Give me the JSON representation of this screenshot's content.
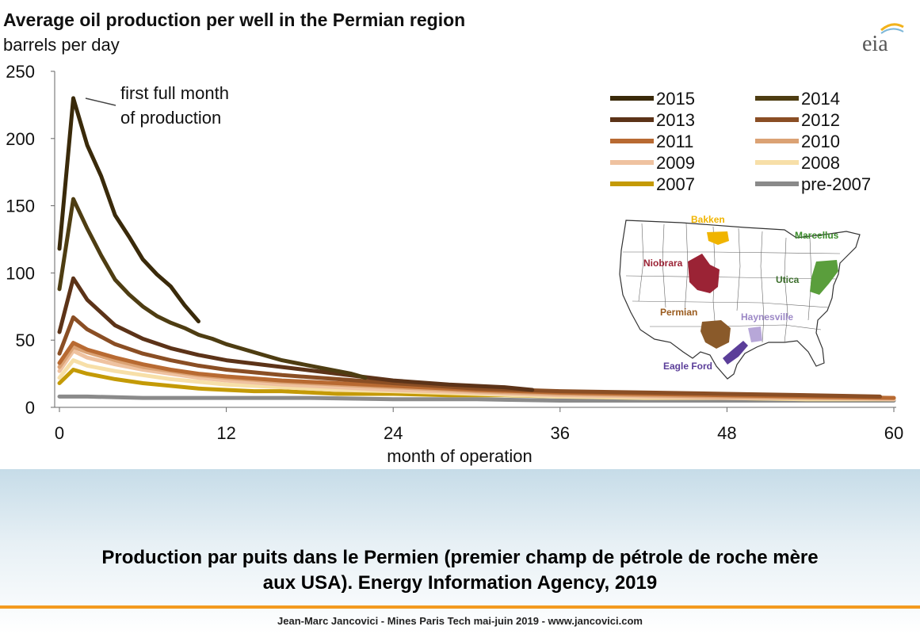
{
  "slide": {
    "caption_line1": "Production par puits dans le Permien (premier champ de pétrole de roche mère",
    "caption_line2": "aux USA). Energy Information Agency, 2019",
    "footer": "Jean-Marc Jancovici - Mines Paris Tech mai-juin 2019 - www.jancovici.com",
    "accent_color": "#f39a1e"
  },
  "chart_data": {
    "type": "line",
    "title": "Average oil production per well in the Permian region",
    "subtitle": "barrels per day",
    "logo": "eia",
    "xlabel": "month of operation",
    "ylabel": "",
    "xlim": [
      0,
      60
    ],
    "ylim": [
      0,
      250
    ],
    "xticks": [
      0,
      12,
      24,
      36,
      48,
      60
    ],
    "yticks": [
      0,
      50,
      100,
      150,
      200,
      250
    ],
    "grid": false,
    "legend_position": "top-right",
    "annotation": {
      "text_line1": "first full month",
      "text_line2": "of production",
      "x": 1,
      "y": 230
    },
    "series": [
      {
        "name": "2015",
        "color": "#3a2a0a",
        "x": [
          0,
          1,
          2,
          3,
          4,
          5,
          6,
          7,
          8,
          9,
          10
        ],
        "y": [
          118,
          230,
          195,
          172,
          143,
          127,
          110,
          99,
          90,
          76,
          64
        ]
      },
      {
        "name": "2014",
        "color": "#4e3d12",
        "x": [
          0,
          1,
          2,
          3,
          4,
          5,
          6,
          7,
          8,
          9,
          10,
          11,
          12,
          13,
          14,
          15,
          16,
          17,
          18,
          19,
          20,
          21,
          22
        ],
        "y": [
          88,
          155,
          133,
          113,
          95,
          84,
          75,
          68,
          63,
          59,
          54,
          51,
          47,
          44,
          41,
          38,
          35,
          33,
          31,
          29,
          27,
          25,
          22
        ]
      },
      {
        "name": "2013",
        "color": "#5c3318",
        "x": [
          0,
          1,
          2,
          4,
          6,
          8,
          10,
          12,
          16,
          20,
          24,
          28,
          32,
          34
        ],
        "y": [
          56,
          96,
          80,
          61,
          51,
          44,
          39,
          35,
          30,
          25,
          20,
          17,
          15,
          13
        ]
      },
      {
        "name": "2012",
        "color": "#8a4e24",
        "x": [
          0,
          1,
          2,
          4,
          6,
          8,
          10,
          12,
          16,
          20,
          24,
          30,
          36,
          42,
          48,
          54,
          59
        ],
        "y": [
          40,
          67,
          58,
          47,
          40,
          35,
          31,
          28,
          24,
          21,
          18,
          14,
          12,
          11,
          10,
          9,
          8
        ]
      },
      {
        "name": "2011",
        "color": "#b86a32",
        "x": [
          0,
          1,
          2,
          4,
          6,
          8,
          10,
          12,
          16,
          20,
          24,
          30,
          36,
          42,
          48,
          54,
          60
        ],
        "y": [
          33,
          48,
          43,
          37,
          32,
          28,
          25,
          23,
          20,
          18,
          16,
          13,
          11,
          10,
          9,
          8,
          7
        ]
      },
      {
        "name": "2010",
        "color": "#dba274",
        "x": [
          0,
          1,
          2,
          4,
          6,
          8,
          10,
          12,
          16,
          20,
          24,
          30,
          36,
          42,
          48,
          54,
          60
        ],
        "y": [
          30,
          45,
          41,
          35,
          30,
          27,
          24,
          22,
          19,
          17,
          15,
          12,
          10,
          9,
          8,
          7,
          7
        ]
      },
      {
        "name": "2009",
        "color": "#efc2a0",
        "x": [
          0,
          1,
          2,
          4,
          6,
          8,
          10,
          12,
          16,
          20,
          24,
          30,
          36,
          42,
          48,
          54,
          60
        ],
        "y": [
          27,
          42,
          37,
          32,
          28,
          25,
          22,
          20,
          17,
          15,
          13,
          11,
          9,
          8,
          7,
          7,
          6
        ]
      },
      {
        "name": "2008",
        "color": "#f7dfa8",
        "x": [
          0,
          1,
          2,
          4,
          6,
          8,
          10,
          12,
          16,
          20,
          24,
          30,
          36,
          42,
          48,
          54,
          60
        ],
        "y": [
          22,
          35,
          31,
          27,
          24,
          21,
          19,
          17,
          15,
          13,
          12,
          10,
          8,
          7,
          7,
          6,
          6
        ]
      },
      {
        "name": "2007",
        "color": "#c49a06",
        "x": [
          0,
          1,
          2,
          4,
          6,
          8,
          10,
          12,
          14,
          16,
          18,
          20,
          24,
          28,
          32,
          36,
          42,
          48,
          54,
          60
        ],
        "y": [
          18,
          28,
          25,
          21,
          18,
          16,
          14,
          13,
          12,
          12,
          11,
          10,
          10,
          9,
          9,
          8,
          7,
          7,
          6,
          6
        ]
      },
      {
        "name": "pre-2007",
        "color": "#8a8a8a",
        "x": [
          0,
          2,
          6,
          12,
          18,
          24,
          30,
          36,
          42,
          48,
          54,
          60
        ],
        "y": [
          8,
          8,
          7,
          7,
          7,
          6,
          6,
          5,
          5,
          5,
          5,
          5
        ]
      }
    ],
    "map_inset": {
      "labels": [
        {
          "text": "Bakken",
          "color": "#f0b400"
        },
        {
          "text": "Marcellus",
          "color": "#3c8c2c"
        },
        {
          "text": "Niobrara",
          "color": "#9b2335"
        },
        {
          "text": "Utica",
          "color": "#3c6e2c"
        },
        {
          "text": "Permian",
          "color": "#9a5b1e"
        },
        {
          "text": "Haynesville",
          "color": "#9c88c6"
        },
        {
          "text": "Eagle Ford",
          "color": "#5b3e99"
        }
      ]
    }
  }
}
